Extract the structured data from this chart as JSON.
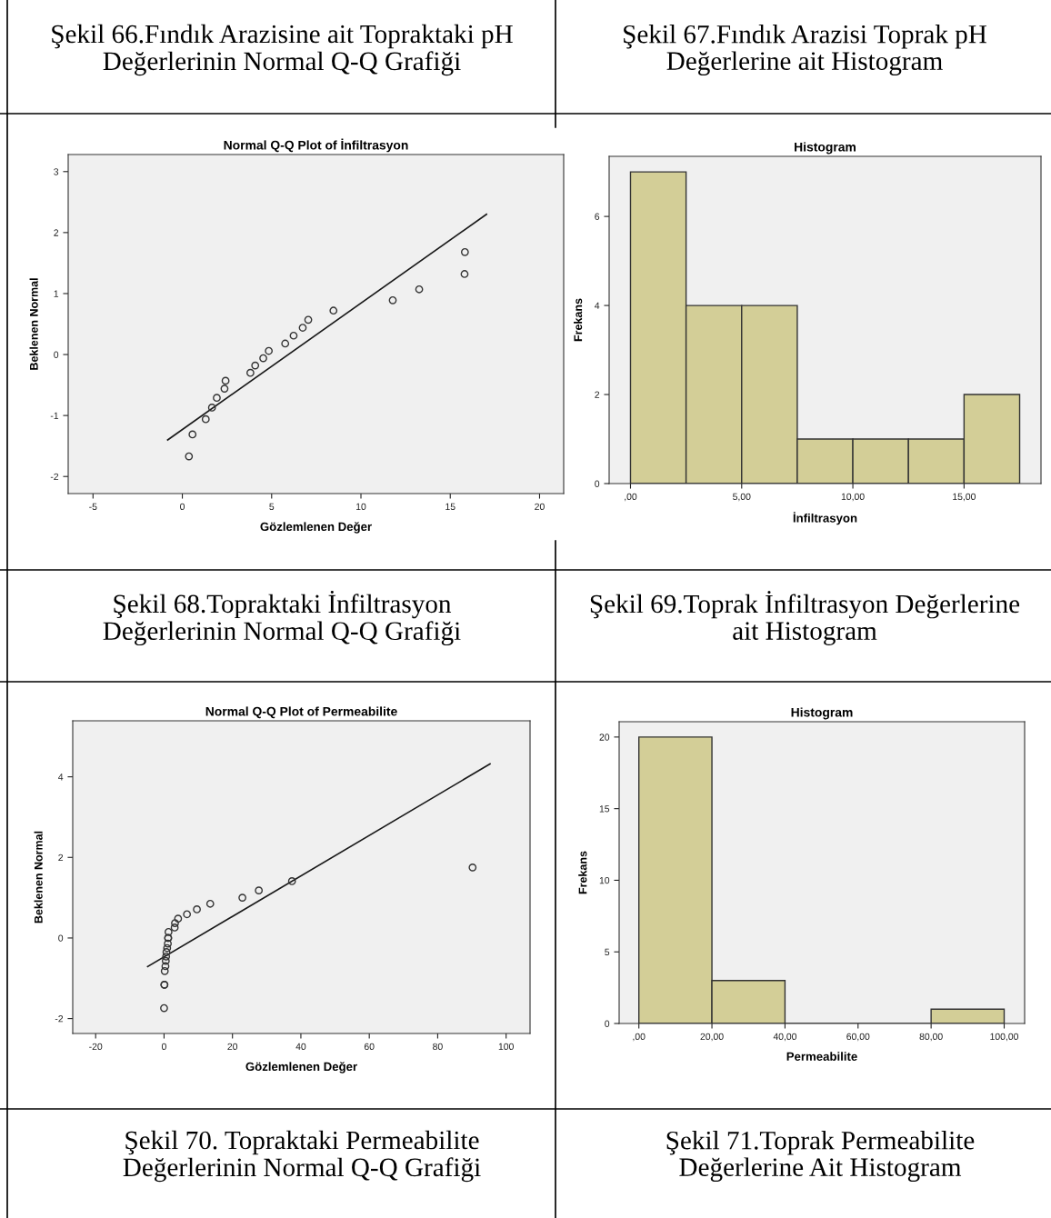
{
  "chart_data": [
    {
      "type": "scatter",
      "title": "Normal Q-Q Plot of İnfiltrasyon",
      "xlabel": "Gözlemlenen Değer",
      "ylabel": "Beklenen Normal",
      "xlim": [
        -6.39,
        21.35
      ],
      "ylim": [
        -2.28,
        3.28
      ],
      "xticks": [
        -5,
        0,
        5,
        10,
        15,
        20
      ],
      "yticks": [
        -2,
        -1,
        0,
        1,
        2,
        3
      ],
      "series": [
        {
          "type": "scatter",
          "marker": "circle",
          "color": "#333333",
          "x": [
            0.37,
            0.57,
            1.31,
            1.66,
            1.93,
            2.36,
            2.42,
            3.81,
            4.08,
            4.53,
            4.84,
            5.76,
            6.23,
            6.74,
            7.05,
            8.46,
            11.78,
            13.26,
            15.8,
            15.82
          ],
          "values": [
            -1.67,
            -1.31,
            -1.06,
            -0.87,
            -0.71,
            -0.56,
            -0.43,
            -0.3,
            -0.18,
            -0.06,
            0.06,
            0.18,
            0.31,
            0.44,
            0.57,
            0.72,
            0.89,
            1.07,
            1.32,
            1.68
          ]
        },
        {
          "type": "line",
          "color": "#1a1a1a",
          "x": [
            -0.82,
            17.03
          ],
          "values": [
            -1.4,
            2.3
          ]
        }
      ],
      "annotations": [
        "Şekil 66.Fındık Arazisine ait Topraktaki pH\nDeğerlerinin Normal Q-Q Grafiği",
        "Şekil 68.Topraktaki İnfiltrasyon\nDeğerlerinin Normal Q-Q Grafiği"
      ]
    },
    {
      "type": "histogram",
      "title": "Histogram",
      "xlabel": "İnfiltrasyon",
      "ylabel": "Frekans",
      "color": "#d3ce97",
      "bins": [
        0,
        2.5,
        5,
        7.5,
        10,
        12.5,
        15,
        17.5
      ],
      "values": [
        7,
        4,
        4,
        1,
        1,
        1,
        2
      ],
      "xlim": [
        -0.96,
        18.46
      ],
      "ylim": [
        0,
        7.35
      ],
      "xticks": [
        {
          "value": 0,
          "label": ",00"
        },
        {
          "value": 5,
          "label": "5,00"
        },
        {
          "value": 10,
          "label": "10,00"
        },
        {
          "value": 15,
          "label": "15,00"
        }
      ],
      "yticks": [
        0,
        2,
        4,
        6
      ],
      "annotations": [
        "Şekil 67.Fındık Arazisi Toprak pH\nDeğerlerine ait Histogram",
        "Şekil 69.Toprak İnfiltrasyon Değerlerine\nait Histogram"
      ]
    },
    {
      "type": "scatter",
      "title": "Normal Q-Q Plot of Permeabilite",
      "xlabel": "Gözlemlenen Değer",
      "ylabel": "Beklenen Normal",
      "xlim": [
        -26.7,
        107
      ],
      "ylim": [
        -2.37,
        5.39
      ],
      "xticks": [
        -20,
        0,
        20,
        40,
        60,
        80,
        100
      ],
      "yticks": [
        -2,
        0,
        2,
        4
      ],
      "series": [
        {
          "type": "scatter",
          "marker": "circle",
          "color": "#333333",
          "x": [
            0,
            0.1,
            0.1,
            0.2,
            0.4,
            0.5,
            0.6,
            0.7,
            0.9,
            1.1,
            1.2,
            1.2,
            1.3,
            3.1,
            3.2,
            4.1,
            6.7,
            9.6,
            13.5,
            22.9,
            27.7,
            37.4,
            90.2
          ],
          "values": [
            -1.74,
            -1.16,
            -1.16,
            -0.82,
            -0.7,
            -0.57,
            -0.46,
            -0.35,
            -0.25,
            -0.14,
            0.0,
            0.0,
            0.15,
            0.26,
            0.37,
            0.48,
            0.59,
            0.71,
            0.85,
            1.0,
            1.18,
            1.41,
            1.75
          ]
        },
        {
          "type": "line",
          "color": "#1a1a1a",
          "x": [
            -4.8,
            95.3
          ],
          "values": [
            -0.71,
            4.32
          ]
        }
      ],
      "annotations": [
        "Şekil 70. Topraktaki Permeabilite\nDeğerlerinin Normal Q-Q Grafiği"
      ]
    },
    {
      "type": "histogram",
      "title": "Histogram",
      "xlabel": "Permeabilite",
      "ylabel": "Frekans",
      "color": "#d3ce97",
      "bins": [
        0,
        20,
        40,
        60,
        80,
        100
      ],
      "values": [
        20,
        3,
        0,
        0,
        1
      ],
      "xlim": [
        -5.4,
        105.6
      ],
      "ylim": [
        0,
        21.07
      ],
      "xticks": [
        {
          "value": 0,
          "label": ",00"
        },
        {
          "value": 20,
          "label": "20,00"
        },
        {
          "value": 40,
          "label": "40,00"
        },
        {
          "value": 60,
          "label": "60,00"
        },
        {
          "value": 80,
          "label": "80,00"
        },
        {
          "value": 100,
          "label": "100,00"
        }
      ],
      "yticks": [
        0,
        5,
        10,
        15,
        20
      ],
      "annotations": [
        "Şekil 71.Toprak Permeabilite\nDeğerlerine Ait Histogram"
      ]
    }
  ]
}
